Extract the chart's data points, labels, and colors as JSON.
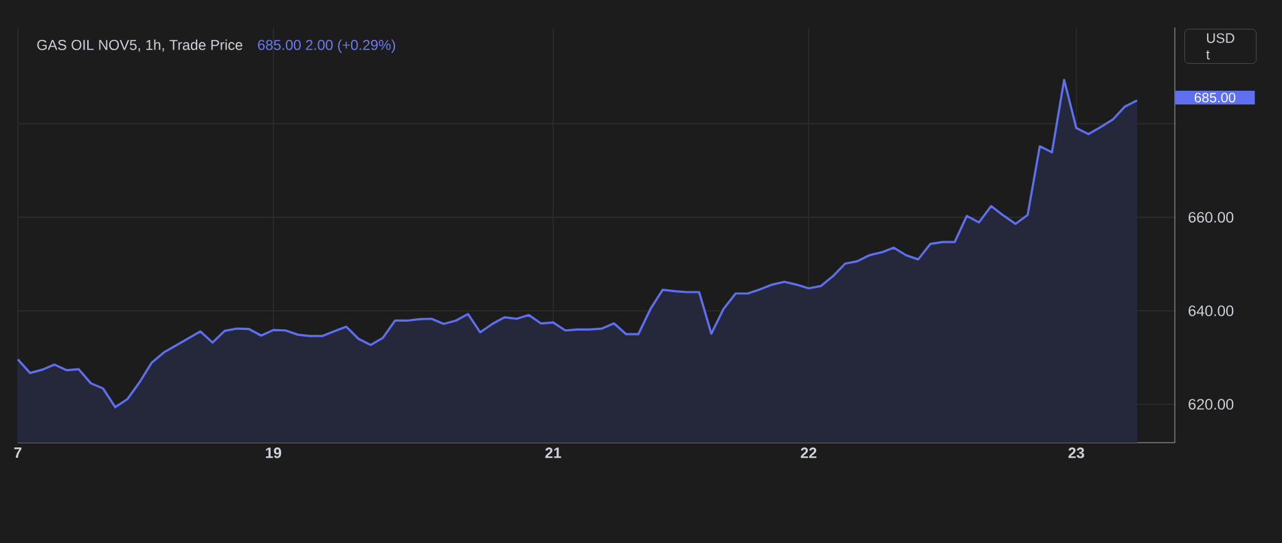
{
  "chart_data": {
    "type": "area",
    "title": "GAS OIL NOV5, 1h, Trade Price",
    "subtitle": "685.00  2.00 (+0.29%)",
    "annotations": [
      "685.00",
      "USD",
      "t"
    ],
    "categories": [
      "7",
      null,
      null,
      null,
      null,
      null,
      null,
      null,
      null,
      null,
      null,
      null,
      null,
      null,
      null,
      null,
      null,
      null,
      null,
      null,
      null,
      "19",
      null,
      null,
      null,
      null,
      null,
      null,
      null,
      null,
      null,
      null,
      null,
      null,
      null,
      null,
      null,
      null,
      null,
      null,
      null,
      null,
      null,
      null,
      "21",
      null,
      null,
      null,
      null,
      null,
      null,
      null,
      null,
      null,
      null,
      null,
      null,
      null,
      null,
      null,
      null,
      null,
      null,
      null,
      null,
      "22",
      null,
      null,
      null,
      null,
      null,
      null,
      null,
      null,
      null,
      null,
      null,
      null,
      null,
      null,
      null,
      null,
      null,
      null,
      null,
      null,
      null,
      "23",
      null,
      null,
      null,
      null,
      null
    ],
    "series": [
      {
        "color": "#5e6ff0",
        "values": [
          629.6,
          626.7,
          627.4,
          628.5,
          627.3,
          627.5,
          624.5,
          623.4,
          619.4,
          621.1,
          624.7,
          628.9,
          631.1,
          632.6,
          634.1,
          635.6,
          633.2,
          635.7,
          636.2,
          636.1,
          634.7,
          635.9,
          635.8,
          634.9,
          634.6,
          634.6,
          635.6,
          636.6,
          634.0,
          632.7,
          634.2,
          637.9,
          637.9,
          638.2,
          638.3,
          637.2,
          637.9,
          639.3,
          635.4,
          637.2,
          638.6,
          638.3,
          639.1,
          637.3,
          637.5,
          635.8,
          636.0,
          636.0,
          636.2,
          637.3,
          635.0,
          635.0,
          640.4,
          644.5,
          644.2,
          644.0,
          644.0,
          635.1,
          640.4,
          643.7,
          643.7,
          644.6,
          645.6,
          646.2,
          645.6,
          644.8,
          645.3,
          647.4,
          650.1,
          650.6,
          651.9,
          652.5,
          653.5,
          651.9,
          651.0,
          654.3,
          654.7,
          654.7,
          660.3,
          658.9,
          662.4,
          660.4,
          658.6,
          660.5,
          675.2,
          673.9,
          689.4,
          679.1,
          677.8,
          679.3,
          680.9,
          683.7,
          685.0
        ]
      }
    ],
    "ylim": [
      611.8,
      700.6
    ],
    "yticks": [
      {
        "value": 620,
        "label": "620.00"
      },
      {
        "value": 640,
        "label": "640.00"
      },
      {
        "value": 660,
        "label": "660.00"
      },
      {
        "value": 680,
        "label": null
      }
    ],
    "grid": true
  }
}
